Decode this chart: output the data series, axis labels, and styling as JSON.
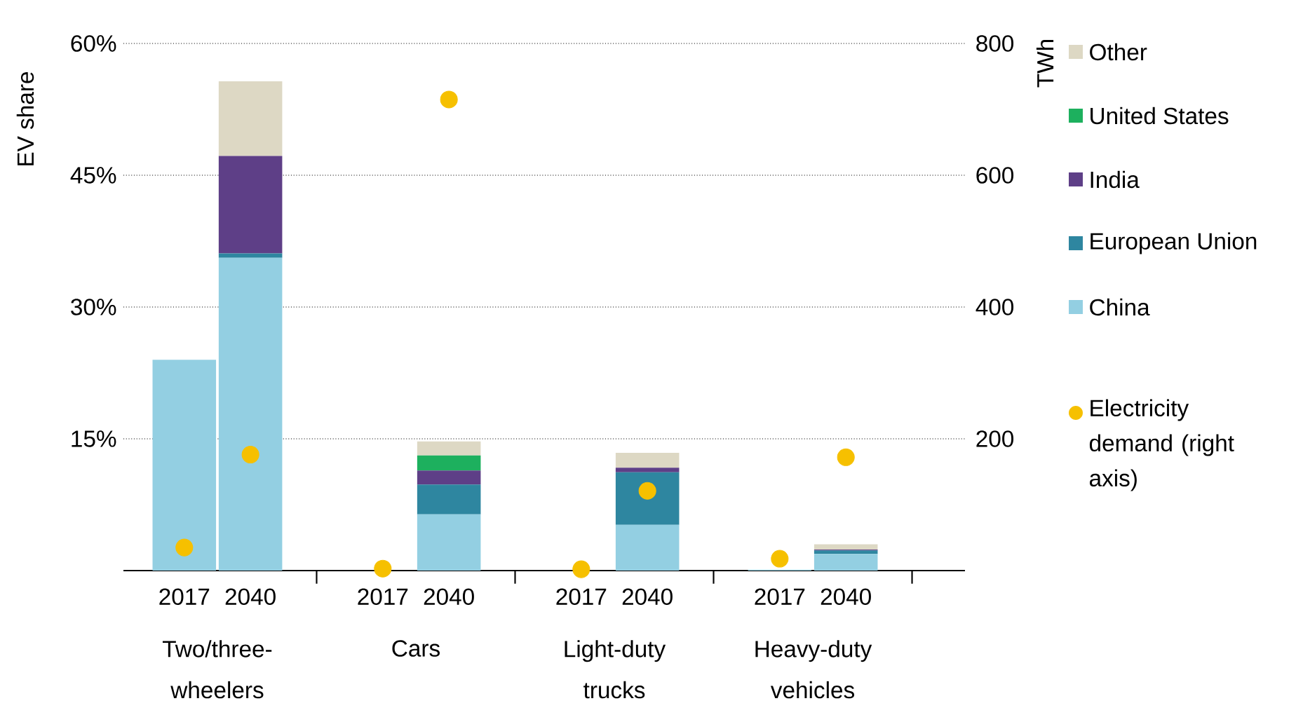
{
  "chart_data": {
    "type": "bar",
    "stacked": true,
    "ylabel": "EV share",
    "y2label": "TWh",
    "categories": [
      "2017",
      "2040",
      "2017",
      "2040",
      "2017",
      "2040",
      "2017",
      "2040"
    ],
    "annotations": [
      "Two/three-wheelers",
      "Cars",
      "Light-duty trucks",
      "Heavy-duty vehicles"
    ],
    "series": [
      {
        "name": "China",
        "color": "#93cfe2",
        "values": [
          24.0,
          35.6,
          null,
          6.4,
          null,
          5.2,
          0.1,
          1.9
        ]
      },
      {
        "name": "European Union",
        "color": "#2e86a0",
        "values": [
          0,
          0.5,
          0,
          3.4,
          0,
          6.0,
          0,
          0.4
        ]
      },
      {
        "name": "India",
        "color": "#5e3f87",
        "values": [
          0,
          11.1,
          0,
          1.6,
          0,
          0.5,
          0,
          0.1
        ]
      },
      {
        "name": "United States",
        "color": "#1db05e",
        "values": [
          0,
          0,
          0,
          1.7,
          0,
          0,
          0,
          0
        ]
      },
      {
        "name": "Other",
        "color": "#ddd8c4",
        "values": [
          0,
          8.5,
          0,
          1.6,
          0,
          1.7,
          0,
          0.6
        ]
      },
      {
        "name": "Electricity demand (right axis)",
        "type": "scatter",
        "axis": "y2",
        "marker": "circle",
        "color": "#f6c000",
        "values": [
          35,
          176,
          3,
          715,
          2,
          121,
          18,
          172
        ]
      }
    ],
    "ylim": [
      0,
      60
    ],
    "yticks": [
      {
        "value": 15,
        "label": "15%"
      },
      {
        "value": 30,
        "label": "30%"
      },
      {
        "value": 45,
        "label": "45%"
      },
      {
        "value": 60,
        "label": "60%"
      }
    ],
    "y2lim": [
      0,
      800
    ],
    "y2ticks": [
      200,
      400,
      600,
      800
    ],
    "grid": "y",
    "legend": "right"
  }
}
